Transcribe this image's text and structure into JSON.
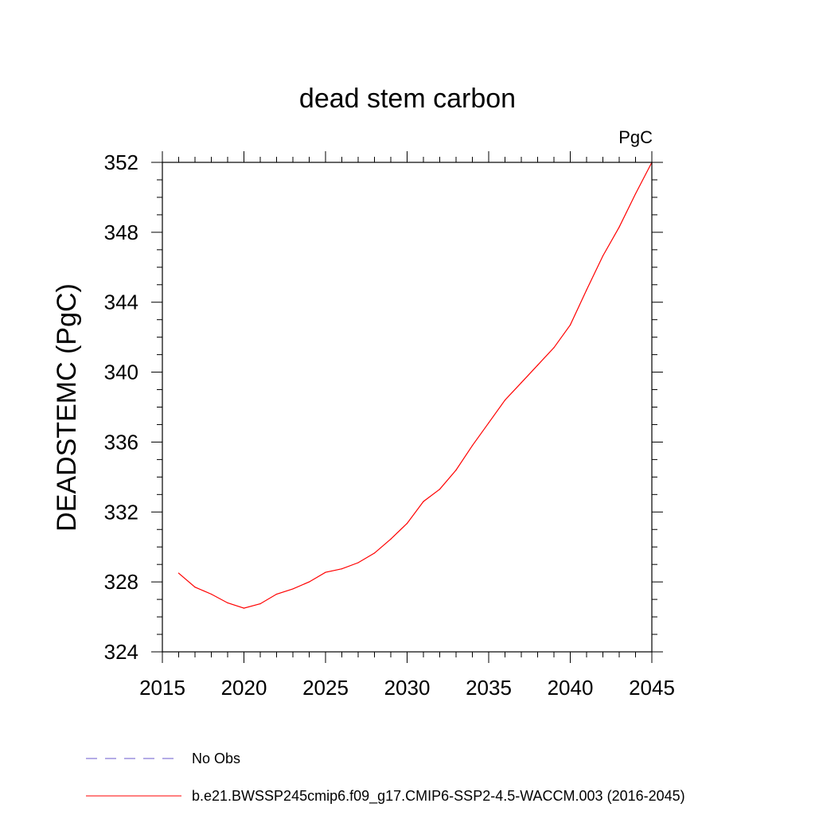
{
  "chart_data": {
    "type": "line",
    "title": "dead stem carbon",
    "units_label": "PgC",
    "xlabel": "",
    "ylabel": "DEADSTEMC  (PgC)",
    "xlim": [
      2015,
      2045
    ],
    "ylim": [
      324,
      352
    ],
    "x_ticks": [
      "2015",
      "2020",
      "2025",
      "2030",
      "2035",
      "2040",
      "2045"
    ],
    "y_ticks": [
      "324",
      "328",
      "332",
      "336",
      "340",
      "344",
      "348",
      "352"
    ],
    "grid": false,
    "legend_position": "bottom",
    "series": [
      {
        "name": "b.e21.BWSSP245cmip6.f09_g17.CMIP6-SSP2-4.5-WACCM.003 (2016-2045)",
        "color": "#ff0000",
        "style": "solid",
        "x": [
          2016,
          2017,
          2018,
          2019,
          2020,
          2021,
          2022,
          2023,
          2024,
          2025,
          2026,
          2027,
          2028,
          2029,
          2030,
          2031,
          2032,
          2033,
          2034,
          2035,
          2036,
          2037,
          2038,
          2039,
          2040,
          2041,
          2042,
          2043,
          2044,
          2045
        ],
        "values": [
          328.5,
          327.7,
          327.3,
          326.8,
          326.5,
          326.75,
          327.3,
          327.6,
          328.0,
          328.55,
          328.75,
          329.1,
          329.65,
          330.45,
          331.35,
          332.6,
          333.3,
          334.4,
          335.8,
          337.1,
          338.4,
          339.4,
          340.4,
          341.4,
          342.7,
          344.7,
          346.65,
          348.3,
          350.2,
          352.0
        ]
      },
      {
        "name": "No Obs",
        "color": "#6a5acd",
        "style": "dashed",
        "x": [],
        "values": []
      }
    ]
  }
}
